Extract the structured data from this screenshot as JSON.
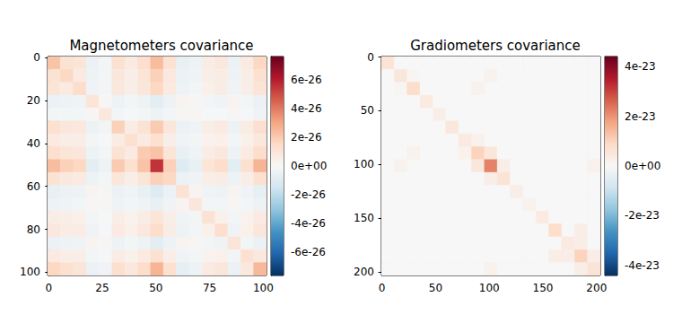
{
  "chart_data": [
    {
      "type": "heatmap",
      "title": "Magnetometers covariance",
      "xlim": [
        -0.5,
        101.5
      ],
      "ylim": [
        -0.5,
        101.5
      ],
      "xticks": [
        0,
        25,
        50,
        75,
        100
      ],
      "yticks": [
        0,
        20,
        40,
        60,
        80,
        100
      ],
      "x_edges": [
        -0.5,
        5.5,
        11.5,
        17.5,
        23.5,
        29.5,
        35.5,
        41.5,
        47.5,
        53.5,
        59.5,
        65.5,
        71.5,
        77.5,
        83.5,
        89.5,
        95.5,
        101.5
      ],
      "y_edges": [
        -0.5,
        5.5,
        11.5,
        17.5,
        23.5,
        29.5,
        35.5,
        41.5,
        47.5,
        53.5,
        59.5,
        65.5,
        71.5,
        77.5,
        83.5,
        89.5,
        95.5,
        101.5
      ],
      "cells": [
        [
          2.2e-26,
          1.1e-26,
          1e-26,
          -5e-27,
          -2e-27,
          1.2e-26,
          7e-27,
          1.3e-26,
          2.4e-26,
          1.1e-26,
          -6e-27,
          -4e-27,
          6e-27,
          8e-27,
          -5e-27,
          7e-27,
          1.6e-26
        ],
        [
          1.1e-26,
          1.6e-26,
          7e-27,
          -4e-27,
          -2e-27,
          9e-27,
          5e-27,
          1e-26,
          1.8e-26,
          8e-27,
          -5e-27,
          -3e-27,
          5e-27,
          6e-27,
          -4e-27,
          5e-27,
          1.2e-26
        ],
        [
          1e-26,
          7e-27,
          1.4e-26,
          -3e-27,
          -2e-27,
          8e-27,
          5e-27,
          9e-27,
          1.6e-26,
          7e-27,
          -4e-27,
          -2e-27,
          4e-27,
          6e-27,
          -3e-27,
          5e-27,
          1e-26
        ],
        [
          -5e-27,
          -4e-27,
          -3e-27,
          1e-26,
          1e-27,
          -4e-27,
          -2e-27,
          -4e-27,
          -8e-27,
          -4e-27,
          2e-27,
          1e-27,
          -2e-27,
          -3e-27,
          2e-27,
          -2e-27,
          -5e-27
        ],
        [
          -2e-27,
          -2e-27,
          -2e-27,
          1e-27,
          8e-27,
          -2e-27,
          -1e-27,
          -2e-27,
          -4e-27,
          -2e-27,
          1e-27,
          1e-27,
          -1e-27,
          -1e-27,
          1e-27,
          -1e-27,
          -3e-27
        ],
        [
          1.2e-26,
          9e-27,
          8e-27,
          -4e-27,
          -2e-27,
          1.8e-26,
          6e-27,
          1.1e-26,
          2e-26,
          9e-27,
          -5e-27,
          -3e-27,
          5e-27,
          7e-27,
          -4e-27,
          6e-27,
          1.3e-26
        ],
        [
          7e-27,
          5e-27,
          5e-27,
          -2e-27,
          -1e-27,
          6e-27,
          1.2e-26,
          7e-27,
          1.2e-26,
          5e-27,
          -3e-27,
          -2e-27,
          3e-27,
          4e-27,
          -2e-27,
          4e-27,
          8e-27
        ],
        [
          1.3e-26,
          1e-26,
          9e-27,
          -4e-27,
          -2e-27,
          1.1e-26,
          7e-27,
          2e-26,
          2.2e-26,
          1e-26,
          -6e-27,
          -3e-27,
          6e-27,
          8e-27,
          -4e-27,
          7e-27,
          1.4e-26
        ],
        [
          2.4e-26,
          1.8e-26,
          1.6e-26,
          -8e-27,
          -4e-27,
          2e-26,
          1.2e-26,
          2.2e-26,
          5.5e-26,
          1.8e-26,
          -1e-26,
          -6e-27,
          1e-26,
          1.4e-26,
          -8e-27,
          1.2e-26,
          2.6e-26
        ],
        [
          1.1e-26,
          8e-27,
          7e-27,
          -4e-27,
          -2e-27,
          9e-27,
          5e-27,
          1e-26,
          1.8e-26,
          1.6e-26,
          -5e-27,
          -3e-27,
          5e-27,
          6e-27,
          -4e-27,
          5e-27,
          1.2e-26
        ],
        [
          -6e-27,
          -5e-27,
          -4e-27,
          2e-27,
          1e-27,
          -5e-27,
          -3e-27,
          -6e-27,
          -1e-26,
          -5e-27,
          1.1e-26,
          2e-27,
          -3e-27,
          -4e-27,
          2e-27,
          -3e-27,
          -7e-27
        ],
        [
          -4e-27,
          -3e-27,
          -2e-27,
          1e-27,
          1e-27,
          -3e-27,
          -2e-27,
          -3e-27,
          -6e-27,
          -3e-27,
          2e-27,
          9e-27,
          -2e-27,
          -2e-27,
          1e-27,
          -2e-27,
          -4e-27
        ],
        [
          6e-27,
          5e-27,
          4e-27,
          -2e-27,
          -1e-27,
          5e-27,
          3e-27,
          6e-27,
          1e-26,
          5e-27,
          -3e-27,
          -2e-27,
          1.1e-26,
          4e-27,
          -2e-27,
          3e-27,
          7e-27
        ],
        [
          8e-27,
          6e-27,
          6e-27,
          -3e-27,
          -1e-27,
          7e-27,
          4e-27,
          8e-27,
          1.4e-26,
          6e-27,
          -4e-27,
          -2e-27,
          4e-27,
          1.3e-26,
          -3e-27,
          4e-27,
          9e-27
        ],
        [
          -5e-27,
          -4e-27,
          -3e-27,
          2e-27,
          1e-27,
          -4e-27,
          -2e-27,
          -4e-27,
          -8e-27,
          -4e-27,
          2e-27,
          1e-27,
          -2e-27,
          -3e-27,
          1e-26,
          -2e-27,
          -5e-27
        ],
        [
          7e-27,
          5e-27,
          5e-27,
          -2e-27,
          -1e-27,
          6e-27,
          4e-27,
          7e-27,
          1.2e-26,
          5e-27,
          -3e-27,
          -2e-27,
          3e-27,
          4e-27,
          -2e-27,
          1.2e-26,
          8e-27
        ],
        [
          1.6e-26,
          1.2e-26,
          1e-26,
          -5e-27,
          -3e-27,
          1.3e-26,
          8e-27,
          1.4e-26,
          2.6e-26,
          1.2e-26,
          -7e-27,
          -4e-27,
          7e-27,
          9e-27,
          -5e-27,
          8e-27,
          2.5e-26
        ]
      ],
      "color_range": [
        -7.6e-26,
        7.6e-26
      ],
      "color_ticks": [
        {
          "value": -6e-26,
          "label": "-6e-26"
        },
        {
          "value": -4e-26,
          "label": "-4e-26"
        },
        {
          "value": -2e-26,
          "label": "-2e-26"
        },
        {
          "value": 0,
          "label": "0e+00"
        },
        {
          "value": 2e-26,
          "label": "2e-26"
        },
        {
          "value": 4e-26,
          "label": "4e-26"
        },
        {
          "value": 6e-26,
          "label": "6e-26"
        }
      ]
    },
    {
      "type": "heatmap",
      "title": "Gradiometers covariance",
      "xlim": [
        -0.5,
        203.5
      ],
      "ylim": [
        -0.5,
        203.5
      ],
      "xticks": [
        0,
        50,
        100,
        150,
        200
      ],
      "yticks": [
        0,
        50,
        100,
        150,
        200
      ],
      "x_edges": [
        -0.5,
        11.5,
        23.5,
        35.5,
        47.5,
        59.5,
        71.5,
        83.5,
        95.5,
        107.5,
        119.5,
        131.5,
        143.5,
        155.5,
        167.5,
        179.5,
        191.5,
        203.5
      ],
      "y_edges": [
        -0.5,
        11.5,
        23.5,
        35.5,
        47.5,
        59.5,
        71.5,
        83.5,
        95.5,
        107.5,
        119.5,
        131.5,
        143.5,
        155.5,
        167.5,
        179.5,
        191.5,
        203.5
      ],
      "cells": [
        [
          6e-24,
          0,
          0,
          0,
          0,
          0,
          0,
          0,
          0,
          0,
          0,
          0,
          0,
          0,
          0,
          0,
          0
        ],
        [
          0,
          5e-24,
          1e-24,
          0,
          0,
          0,
          0,
          0,
          2e-24,
          0,
          0,
          0,
          0,
          0,
          0,
          0,
          0
        ],
        [
          0,
          1e-24,
          8e-24,
          0,
          0,
          0,
          0,
          2e-24,
          0,
          0,
          0,
          0,
          0,
          0,
          0,
          0,
          0
        ],
        [
          0,
          0,
          0,
          4e-24,
          0,
          0,
          0,
          0,
          0,
          0,
          0,
          0,
          0,
          0,
          0,
          0,
          0
        ],
        [
          0,
          0,
          0,
          0,
          3e-24,
          0,
          0,
          0,
          0,
          0,
          0,
          0,
          0,
          0,
          0,
          0,
          0
        ],
        [
          0,
          0,
          0,
          0,
          0,
          5e-24,
          0,
          0,
          0,
          0,
          0,
          0,
          0,
          0,
          0,
          0,
          0
        ],
        [
          0,
          0,
          0,
          0,
          0,
          0,
          4e-24,
          2e-24,
          0,
          0,
          0,
          0,
          0,
          0,
          0,
          0,
          0
        ],
        [
          0,
          0,
          2e-24,
          0,
          0,
          0,
          2e-24,
          1e-23,
          5e-24,
          0,
          0,
          0,
          0,
          0,
          0,
          0,
          0
        ],
        [
          0,
          2e-24,
          0,
          0,
          0,
          0,
          0,
          5e-24,
          2.2e-23,
          3e-24,
          0,
          0,
          0,
          0,
          0,
          0,
          2e-24
        ],
        [
          0,
          0,
          0,
          0,
          0,
          0,
          0,
          0,
          3e-24,
          6e-24,
          0,
          0,
          0,
          0,
          0,
          0,
          0
        ],
        [
          0,
          0,
          0,
          0,
          0,
          0,
          0,
          0,
          0,
          0,
          3e-24,
          0,
          0,
          0,
          0,
          0,
          0
        ],
        [
          0,
          0,
          0,
          0,
          0,
          0,
          0,
          0,
          0,
          0,
          0,
          2e-24,
          0,
          0,
          0,
          0,
          0
        ],
        [
          0,
          0,
          0,
          0,
          0,
          0,
          0,
          0,
          0,
          0,
          0,
          0,
          4e-24,
          0,
          0,
          0,
          0
        ],
        [
          0,
          0,
          0,
          0,
          0,
          0,
          0,
          0,
          0,
          0,
          0,
          0,
          0,
          8e-24,
          0,
          3e-24,
          0
        ],
        [
          0,
          0,
          0,
          0,
          0,
          0,
          0,
          0,
          0,
          0,
          0,
          0,
          0,
          0,
          4e-24,
          3e-24,
          0
        ],
        [
          0,
          0,
          0,
          0,
          0,
          0,
          0,
          0,
          0,
          0,
          0,
          0,
          0,
          3e-24,
          3e-24,
          1e-23,
          3e-24
        ],
        [
          0,
          0,
          0,
          0,
          0,
          0,
          0,
          0,
          2e-24,
          0,
          0,
          0,
          0,
          0,
          0,
          3e-24,
          6e-24
        ]
      ],
      "color_range": [
        -4.4e-23,
        4.4e-23
      ],
      "color_ticks": [
        {
          "value": -4e-23,
          "label": "-4e-23"
        },
        {
          "value": -2e-23,
          "label": "-2e-23"
        },
        {
          "value": 0,
          "label": "0e+00"
        },
        {
          "value": 2e-23,
          "label": "2e-23"
        },
        {
          "value": 4e-23,
          "label": "4e-23"
        }
      ]
    }
  ]
}
